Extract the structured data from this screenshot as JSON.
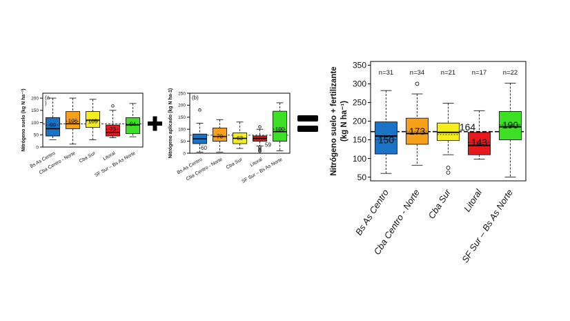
{
  "colors": {
    "c0": "#1a73c4",
    "c1": "#f7a11a",
    "c2": "#f5ee1e",
    "c3": "#e8191d",
    "c4": "#3fdf28"
  },
  "operators": {
    "plus": "+",
    "equals": "="
  },
  "chart_data": [
    {
      "type": "box",
      "panel": "a",
      "label_text": "(a\n)",
      "ylabel": "Nitrógeno suelo (kg N ha⁻¹)",
      "ylim": [
        0,
        220
      ],
      "yticks": [
        0,
        50,
        100,
        150,
        200
      ],
      "categories": [
        "Bs As Centro",
        "Cba Centro - Norte",
        "Cba Sur",
        "Litoral",
        "SF Sur – Bs As Norte"
      ],
      "ref_mean": 95,
      "boxes": [
        {
          "whislo": 30,
          "q1": 45,
          "med": 75,
          "q3": 120,
          "whishi": 200,
          "mean": 90,
          "outliers": [],
          "label": "90"
        },
        {
          "whislo": 12,
          "q1": 75,
          "med": 95,
          "q3": 145,
          "whishi": 200,
          "mean": 106,
          "outliers": [],
          "label": "106"
        },
        {
          "whislo": 30,
          "q1": 80,
          "med": 110,
          "q3": 145,
          "whishi": 195,
          "mean": 105,
          "outliers": [],
          "label": "105"
        },
        {
          "whislo": 38,
          "q1": 45,
          "med": 60,
          "q3": 90,
          "whishi": 150,
          "mean": 73,
          "outliers": [
            168
          ],
          "label": "73"
        },
        {
          "whislo": 42,
          "q1": 55,
          "med": 90,
          "q3": 120,
          "whishi": 178,
          "mean": 94,
          "outliers": [],
          "label": "94"
        }
      ]
    },
    {
      "type": "box",
      "panel": "b",
      "label_text": "(b)",
      "ylabel": "Nitrógeno aplicado (kg N ha-1)",
      "ylim": [
        0,
        250
      ],
      "yticks": [
        0,
        50,
        100,
        150,
        200,
        250
      ],
      "categories": [
        "Bs As Centro",
        "Cba Centro - Norte",
        "Cba Sur",
        "Litoral",
        "SF Sur – Bs As Norte"
      ],
      "ref_mean": 75,
      "boxes": [
        {
          "whislo": 5,
          "q1": 40,
          "med": 60,
          "q3": 80,
          "whishi": 125,
          "mean": 60,
          "outliers": [
            180
          ],
          "label": "60"
        },
        {
          "whislo": 5,
          "q1": 50,
          "med": 70,
          "q3": 105,
          "whishi": 140,
          "mean": 70,
          "outliers": [],
          "label": "70"
        },
        {
          "whislo": 20,
          "q1": 40,
          "med": 62,
          "q3": 85,
          "whishi": 130,
          "mean": 63,
          "outliers": [],
          "label": "63"
        },
        {
          "whislo": 30,
          "q1": 50,
          "med": 62,
          "q3": 72,
          "whishi": 100,
          "mean": 59,
          "outliers": [
            110,
            25,
            18,
            12,
            8
          ],
          "label": "59"
        },
        {
          "whislo": 10,
          "q1": 50,
          "med": 90,
          "q3": 175,
          "whishi": 210,
          "mean": 100,
          "outliers": [],
          "label": "100"
        }
      ]
    },
    {
      "type": "box",
      "panel": "c",
      "ylabel_line1": "Nitrógeno suelo + fertilizante",
      "ylabel_line2": "(kg N ha⁻¹)",
      "ylim": [
        40,
        360
      ],
      "yticks": [
        50,
        100,
        150,
        200,
        250,
        300,
        350
      ],
      "categories": [
        "Bs As Centro",
        "Cba Centro - Norte",
        "Cba Sur",
        "Litoral",
        "SF Sur – Bs As Norte"
      ],
      "ref_mean": 172,
      "counts": [
        "n=31",
        "n=34",
        "n=21",
        "n=17",
        "n=22"
      ],
      "boxes": [
        {
          "whislo": 60,
          "q1": 112,
          "med": 160,
          "q3": 198,
          "whishi": 282,
          "mean": 150,
          "outliers": [],
          "label": "150"
        },
        {
          "whislo": 82,
          "q1": 138,
          "med": 167,
          "q3": 208,
          "whishi": 273,
          "mean": 173,
          "outliers": [
            300
          ],
          "label": "173"
        },
        {
          "whislo": 110,
          "q1": 148,
          "med": 170,
          "q3": 195,
          "whishi": 248,
          "mean": 164,
          "outliers": [
            75,
            62
          ],
          "label": "164"
        },
        {
          "whislo": 98,
          "q1": 110,
          "med": 135,
          "q3": 170,
          "whishi": 228,
          "mean": 143,
          "outliers": [],
          "label": "143"
        },
        {
          "whislo": 50,
          "q1": 150,
          "med": 185,
          "q3": 226,
          "whishi": 302,
          "mean": 190,
          "outliers": [],
          "label": "190"
        }
      ]
    }
  ]
}
